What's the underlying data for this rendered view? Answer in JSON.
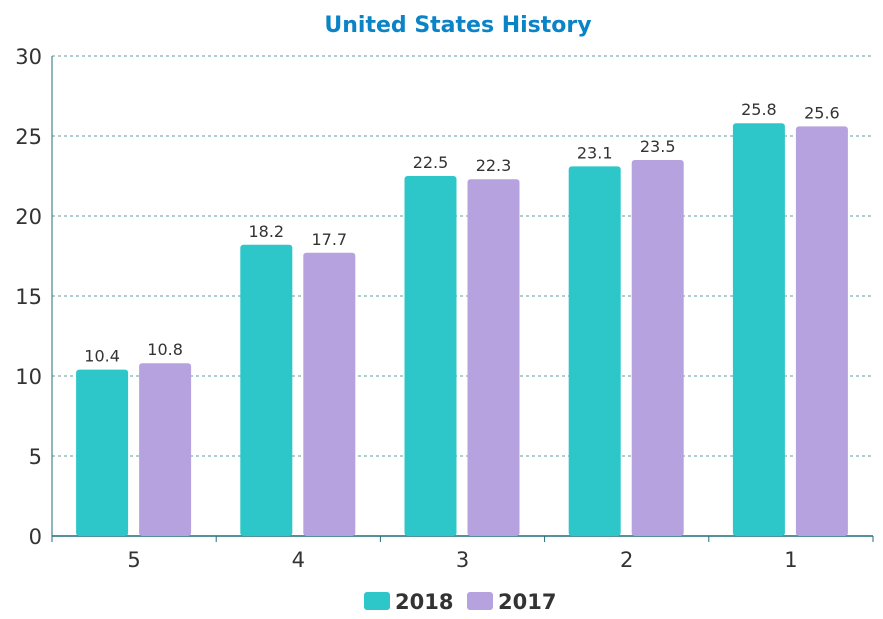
{
  "chart_data": {
    "type": "bar",
    "title": "United States History",
    "xlabel": "",
    "ylabel": "",
    "categories": [
      "5",
      "4",
      "3",
      "2",
      "1"
    ],
    "series": [
      {
        "name": "2018",
        "color": "#2ec7c9",
        "values": [
          10.4,
          18.2,
          22.5,
          23.1,
          25.8
        ]
      },
      {
        "name": "2017",
        "color": "#b6a2de",
        "values": [
          10.8,
          17.7,
          22.3,
          23.5,
          25.6
        ]
      }
    ],
    "ylim": [
      0,
      30
    ],
    "yticks": [
      0,
      5,
      10,
      15,
      20,
      25,
      30
    ],
    "grid": true,
    "legend": "bottom-center",
    "title_color": "#0a84c6"
  }
}
